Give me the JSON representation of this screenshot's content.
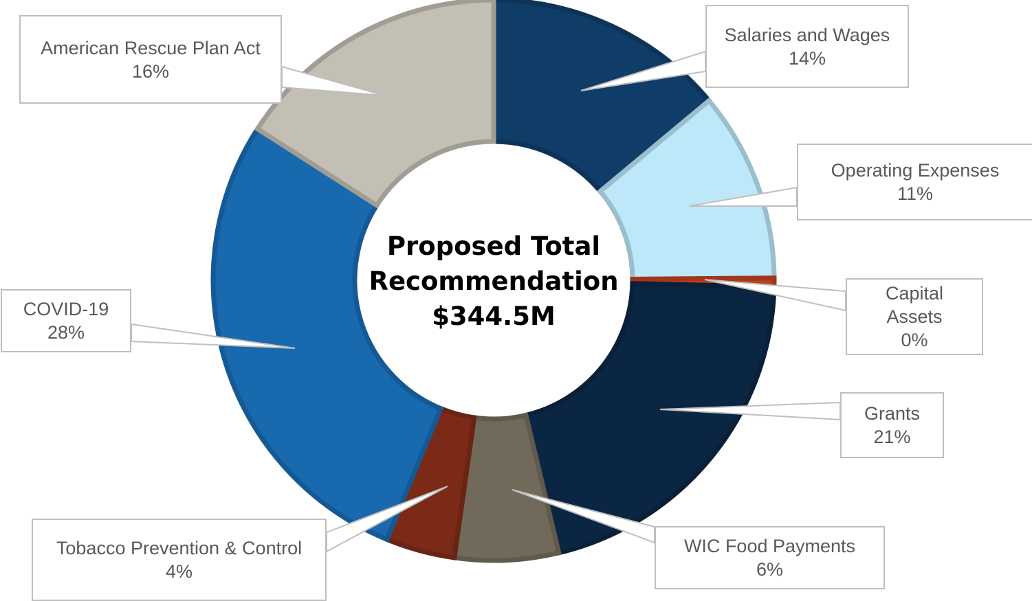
{
  "chart_data": {
    "type": "pie",
    "variant": "donut",
    "center_label": [
      "Proposed Total",
      "Recommendation",
      "$344.5M"
    ],
    "slices": [
      {
        "label": "Salaries and Wages",
        "percent_label": "14%",
        "value": 14,
        "color": "#0f3d68"
      },
      {
        "label": "Operating Expenses",
        "percent_label": "11%",
        "value": 11,
        "color": "#bde8fa"
      },
      {
        "label": "Capital Assets",
        "label_lines": [
          "Capital",
          "Assets"
        ],
        "percent_label": "0%",
        "value": 0.5,
        "color": "#c0401f"
      },
      {
        "label": "Grants",
        "percent_label": "21%",
        "value": 21,
        "color": "#0a2642"
      },
      {
        "label": "WIC Food Payments",
        "percent_label": "6%",
        "value": 6,
        "color": "#716a5a"
      },
      {
        "label": "Tobacco Prevention & Control",
        "percent_label": "4%",
        "value": 4,
        "color": "#7b2a17"
      },
      {
        "label": "COVID-19",
        "percent_label": "28%",
        "value": 28,
        "color": "#1869ae"
      },
      {
        "label": "American Rescue Plan Act",
        "percent_label": "16%",
        "value": 16,
        "color": "#c3bfb4"
      }
    ],
    "labels": "outside-callouts",
    "legend": "none"
  }
}
